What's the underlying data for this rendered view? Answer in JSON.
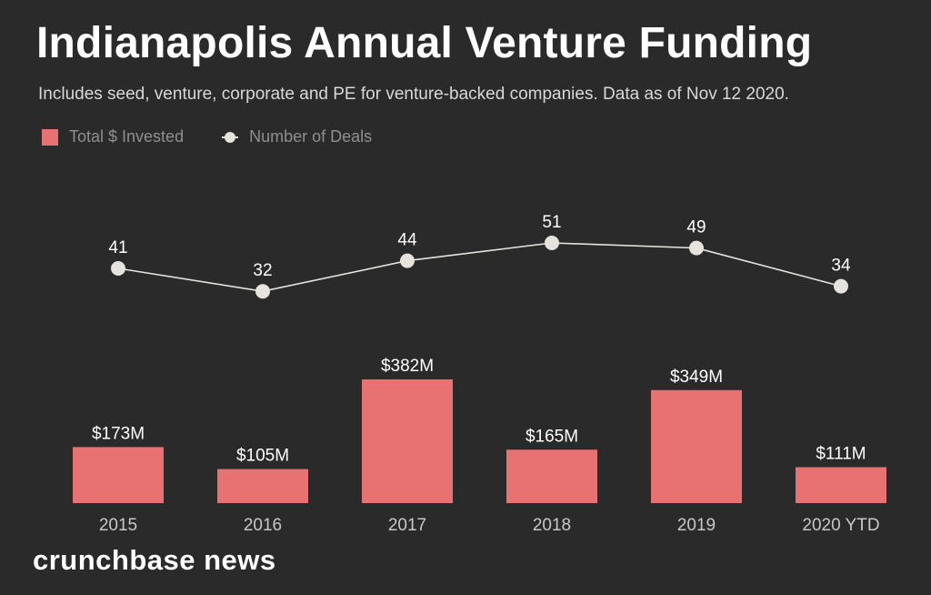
{
  "chart_data": {
    "type": "bar",
    "title": "Indianapolis Annual Venture Funding",
    "subtitle": "Includes seed, venture, corporate and PE for venture-backed companies. Data as of Nov 12 2020.",
    "categories": [
      "2015",
      "2016",
      "2017",
      "2018",
      "2019",
      "2020 YTD"
    ],
    "series": [
      {
        "name": "Total $ Invested",
        "type": "bar",
        "values": [
          173,
          105,
          382,
          165,
          349,
          111
        ],
        "labels": [
          "$173M",
          "$105M",
          "$382M",
          "$165M",
          "$349M",
          "$111M"
        ],
        "color": "#e87272"
      },
      {
        "name": "Number of Deals",
        "type": "line",
        "values": [
          41,
          32,
          44,
          51,
          49,
          34
        ],
        "labels": [
          "41",
          "32",
          "44",
          "51",
          "49",
          "34"
        ],
        "color": "#e6e3de"
      }
    ],
    "legend": "top-left",
    "grid": false
  },
  "branding": {
    "logo_text": "crunchbase news"
  },
  "colors": {
    "background": "#2a2a2a",
    "bar": "#e87272",
    "line": "#e6e3de",
    "tick_text": "#c8c8c8"
  }
}
